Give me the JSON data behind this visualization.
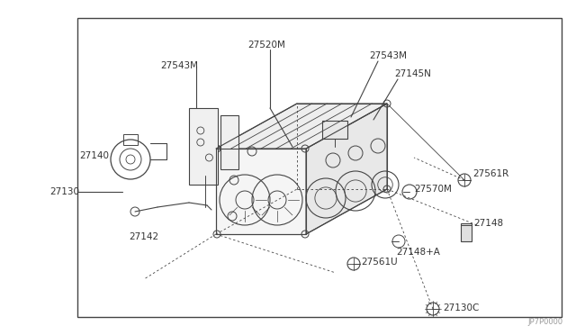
{
  "bg_color": "#ffffff",
  "border_color": "#aaaaaa",
  "line_color": "#444444",
  "part_color": "#333333",
  "title_code": "JP7P0000",
  "border": [
    0.135,
    0.055,
    0.975,
    0.945
  ],
  "figsize": [
    6.4,
    3.72
  ],
  "dpi": 100
}
